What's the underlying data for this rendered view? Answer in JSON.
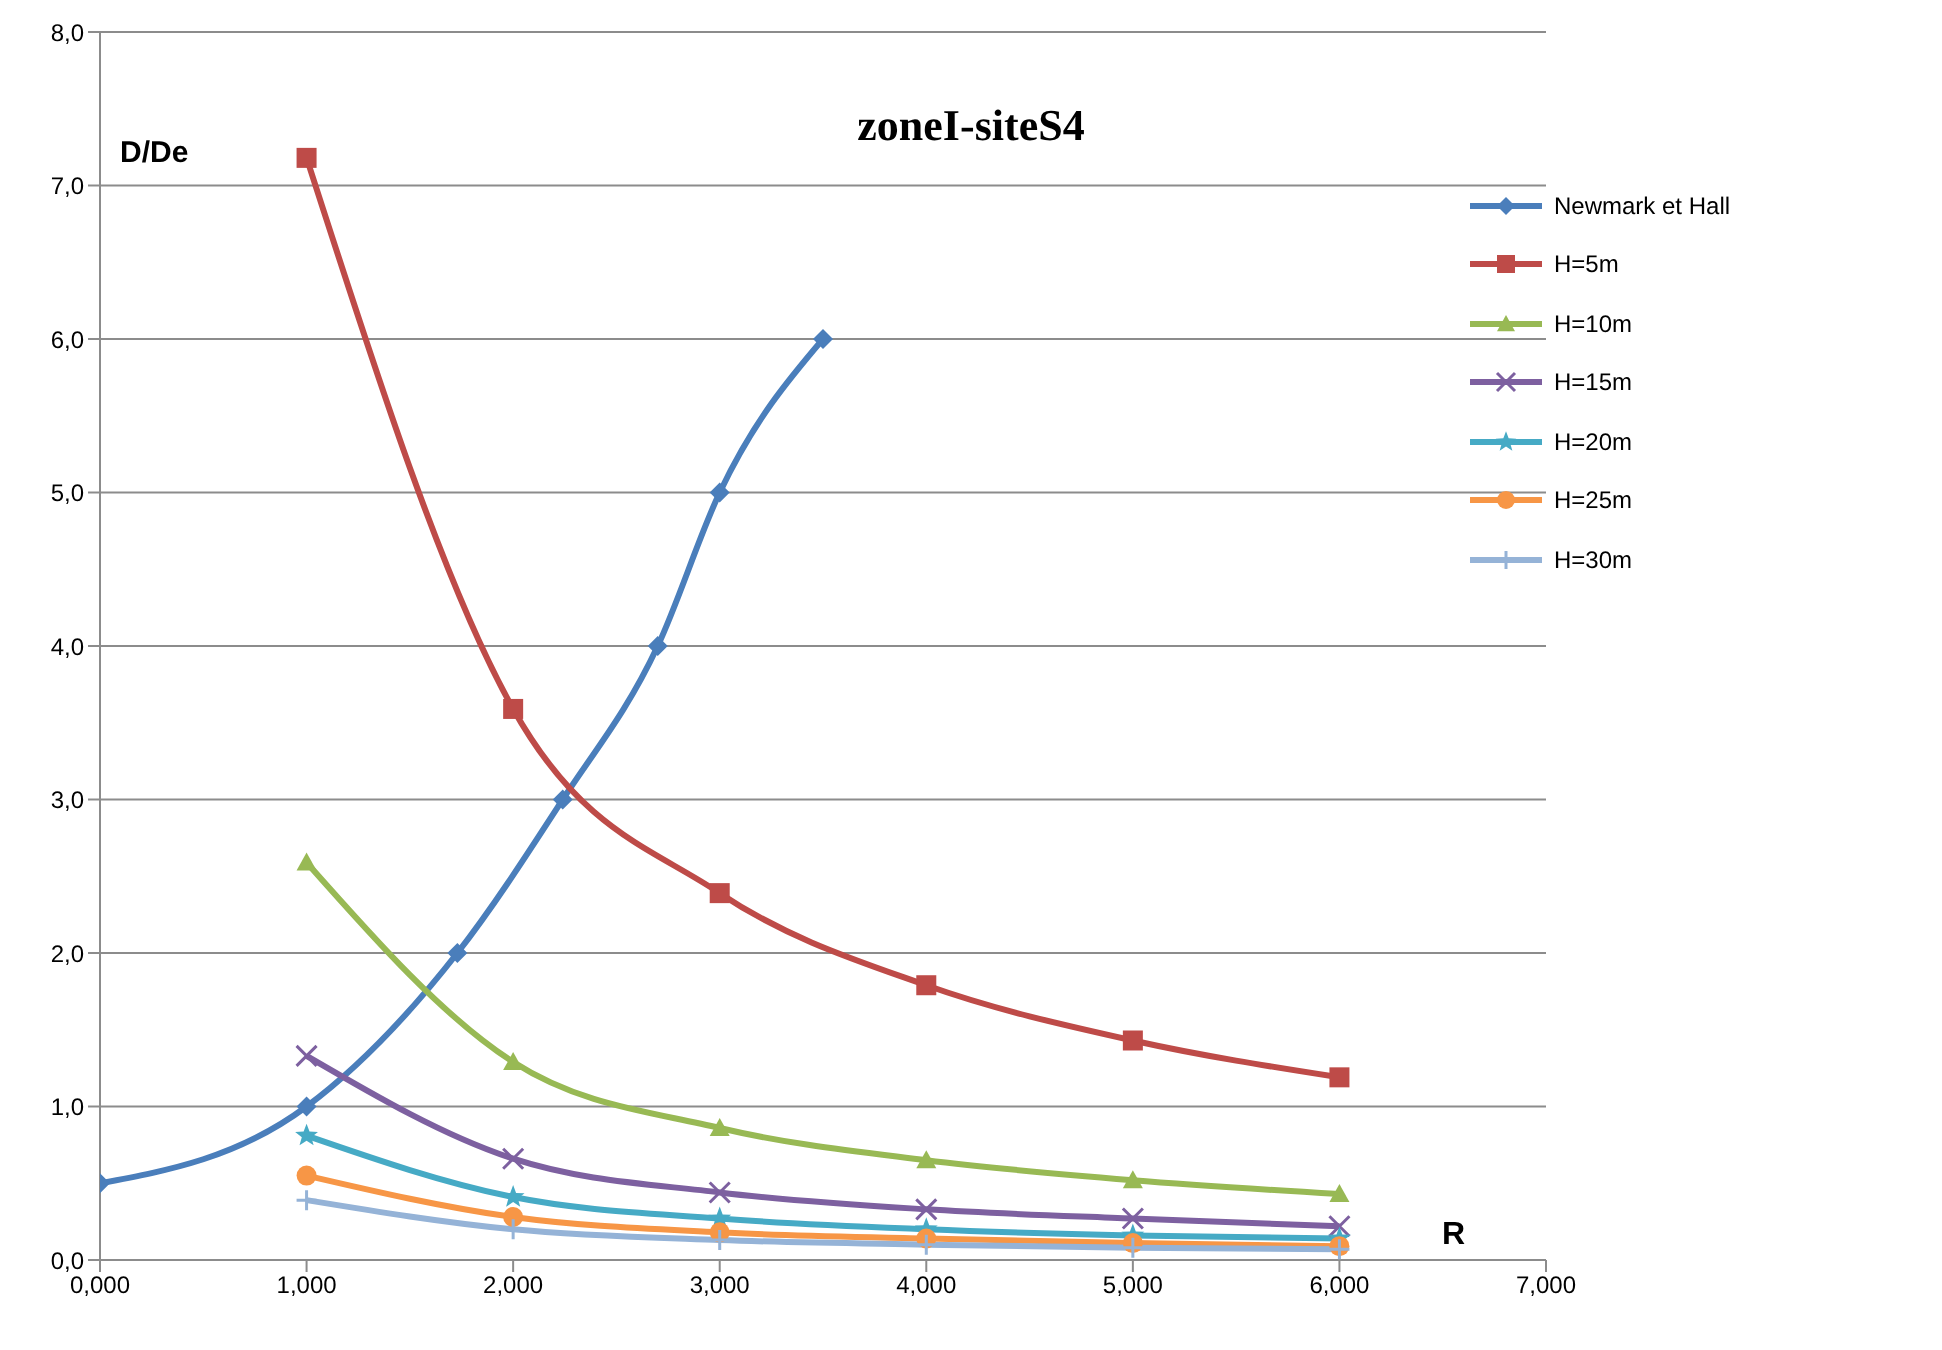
{
  "chart_data": {
    "type": "line",
    "title": "zoneI-siteS4",
    "xlabel": "R",
    "ylabel": "D/De",
    "xlim": [
      0,
      7
    ],
    "xticks": [
      {
        "value": 0,
        "label": "0,000"
      },
      {
        "value": 1,
        "label": "1,000"
      },
      {
        "value": 2,
        "label": "2,000"
      },
      {
        "value": 3,
        "label": "3,000"
      },
      {
        "value": 4,
        "label": "4,000"
      },
      {
        "value": 5,
        "label": "5,000"
      },
      {
        "value": 6,
        "label": "6,000"
      },
      {
        "value": 7,
        "label": "7,000"
      }
    ],
    "ylim": [
      0,
      8
    ],
    "yticks": [
      {
        "value": 0,
        "label": "0,0"
      },
      {
        "value": 1,
        "label": "1,0"
      },
      {
        "value": 2,
        "label": "2,0"
      },
      {
        "value": 3,
        "label": "3,0"
      },
      {
        "value": 4,
        "label": "4,0"
      },
      {
        "value": 5,
        "label": "5,0"
      },
      {
        "value": 6,
        "label": "6,0"
      },
      {
        "value": 7,
        "label": "7,0"
      },
      {
        "value": 8,
        "label": "8,0"
      }
    ],
    "grid": "y",
    "legend": "top right",
    "line_style": "solid",
    "series": [
      {
        "name": "Newmark et Hall",
        "color": "#4a7ebb",
        "marker": "diamond",
        "x": [
          0,
          1,
          1.73,
          2.24,
          2.7,
          3,
          3.5
        ],
        "values": [
          0.5,
          1,
          2,
          3,
          4,
          5,
          6
        ]
      },
      {
        "name": "H=5m",
        "color": "#be4b48",
        "marker": "square",
        "x": [
          1,
          2,
          3,
          4,
          5,
          6
        ],
        "values": [
          7.18,
          3.59,
          2.39,
          1.79,
          1.43,
          1.19
        ]
      },
      {
        "name": "H=10m",
        "color": "#98b954",
        "marker": "triangle",
        "x": [
          1,
          2,
          3,
          4,
          5,
          6
        ],
        "values": [
          2.59,
          1.29,
          0.86,
          0.65,
          0.52,
          0.43
        ]
      },
      {
        "name": "H=15m",
        "color": "#7d60a0",
        "marker": "cross",
        "x": [
          1,
          2,
          3,
          4,
          5,
          6
        ],
        "values": [
          1.33,
          0.66,
          0.44,
          0.33,
          0.27,
          0.22
        ]
      },
      {
        "name": "H=20m",
        "color": "#46aac5",
        "marker": "star",
        "x": [
          1,
          2,
          3,
          4,
          5,
          6
        ],
        "values": [
          0.81,
          0.41,
          0.27,
          0.2,
          0.16,
          0.14
        ]
      },
      {
        "name": "H=25m",
        "color": "#f79646",
        "marker": "circle",
        "x": [
          1,
          2,
          3,
          4,
          5,
          6
        ],
        "values": [
          0.55,
          0.28,
          0.18,
          0.14,
          0.11,
          0.09
        ]
      },
      {
        "name": "H=30m",
        "color": "#95b3d7",
        "marker": "plus",
        "x": [
          1,
          2,
          3,
          4,
          5,
          6
        ],
        "values": [
          0.39,
          0.2,
          0.13,
          0.1,
          0.08,
          0.07
        ]
      }
    ]
  }
}
